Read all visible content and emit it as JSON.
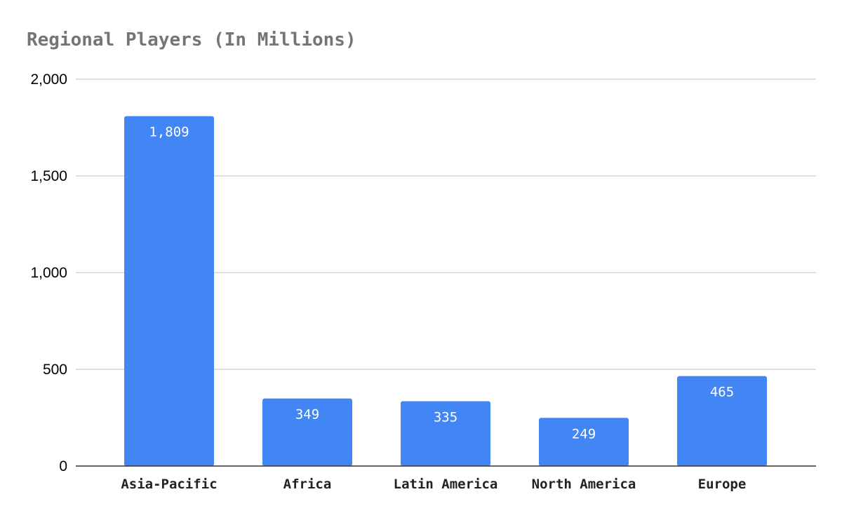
{
  "chart_data": {
    "type": "bar",
    "title": "Regional Players (In Millions)",
    "xlabel": "",
    "ylabel": "",
    "categories": [
      "Asia-Pacific",
      "Africa",
      "Latin America",
      "North America",
      "Europe"
    ],
    "values": [
      1809,
      349,
      335,
      249,
      465
    ],
    "value_labels": [
      "1,809",
      "349",
      "335",
      "249",
      "465"
    ],
    "ylim": [
      0,
      2000
    ],
    "y_ticks": [
      0,
      500,
      1000,
      1500,
      2000
    ],
    "y_tick_labels": [
      "0",
      "500",
      "1,000",
      "1,500",
      "2,000"
    ],
    "grid": true,
    "legend": "none",
    "colors": {
      "bar": "#4285f4",
      "grid": "#cccccc",
      "axis": "#333333",
      "title": "#757575",
      "data_label": "#ffffff"
    }
  }
}
